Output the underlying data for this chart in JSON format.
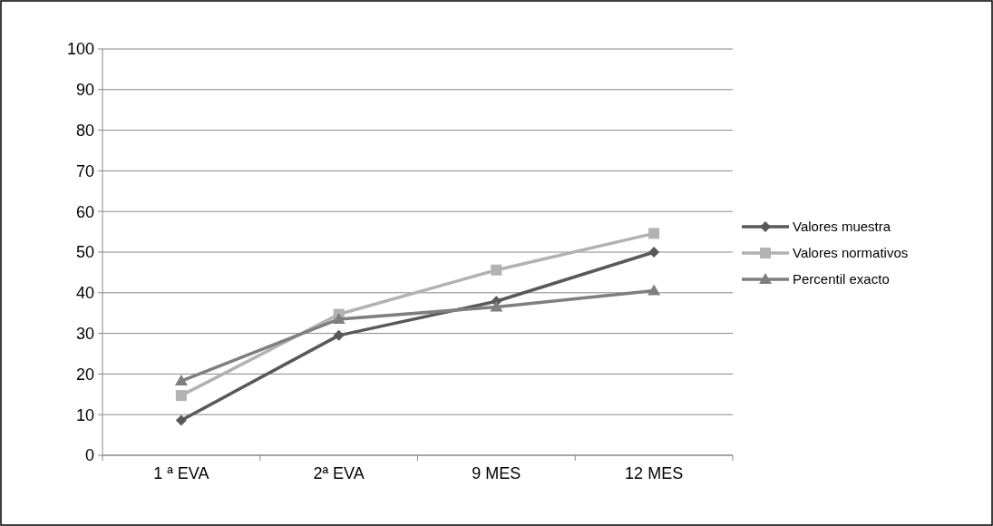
{
  "chart_data": {
    "type": "line",
    "categories": [
      "1 ª EVA",
      "2ª EVA",
      "9 MES",
      "12 MES"
    ],
    "series": [
      {
        "name": "Valores muestra",
        "color": "#595959",
        "marker": "diamond",
        "values": [
          8.6,
          29.5,
          37.9,
          50.0
        ]
      },
      {
        "name": "Valores normativos",
        "color": "#b2b2b2",
        "marker": "square",
        "values": [
          14.7,
          34.7,
          45.6,
          54.6
        ]
      },
      {
        "name": "Percentil exacto",
        "color": "#7f7f7f",
        "marker": "triangle",
        "values": [
          18.3,
          33.5,
          36.5,
          40.5
        ]
      }
    ],
    "ylim": [
      0,
      100
    ],
    "yticks": [
      0,
      10,
      20,
      30,
      40,
      50,
      60,
      70,
      80,
      90,
      100
    ],
    "grid": "y",
    "legend": "right"
  }
}
